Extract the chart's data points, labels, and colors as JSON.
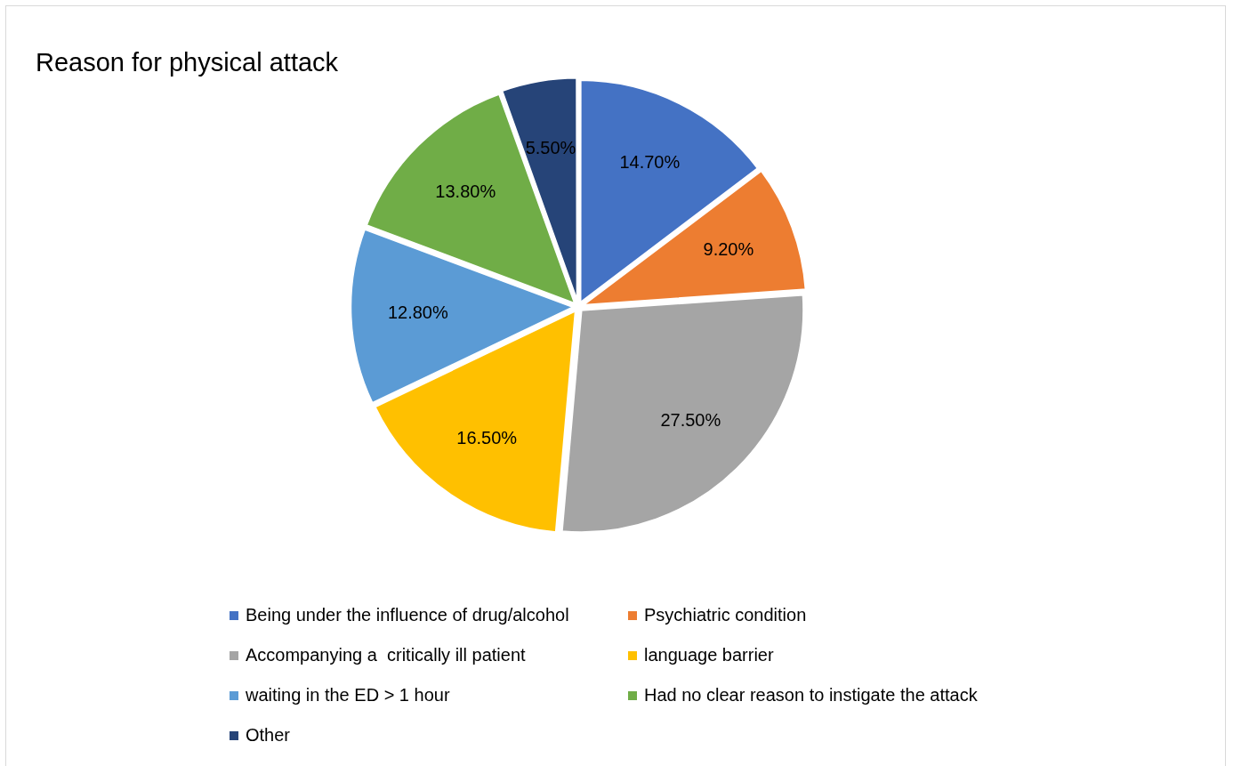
{
  "chart_data": {
    "type": "pie",
    "title": "Reason for physical attack",
    "categories": [
      "Being under the influence of drug/alcohol",
      "Psychiatric condition",
      "Accompanying a  critically ill patient",
      "language barrier",
      "waiting in the ED > 1 hour",
      "Had no clear reason to instigate the attack",
      "Other"
    ],
    "values": [
      14.7,
      9.2,
      27.5,
      16.5,
      12.8,
      13.8,
      5.5
    ],
    "value_labels": [
      "14.70%",
      "9.20%",
      "27.50%",
      "16.50%",
      "12.80%",
      "13.80%",
      "5.50%"
    ],
    "colors": [
      "#4472c4",
      "#ed7d31",
      "#a5a5a5",
      "#ffc000",
      "#5b9bd5",
      "#70ad47",
      "#264478"
    ],
    "legend": "bottom"
  }
}
